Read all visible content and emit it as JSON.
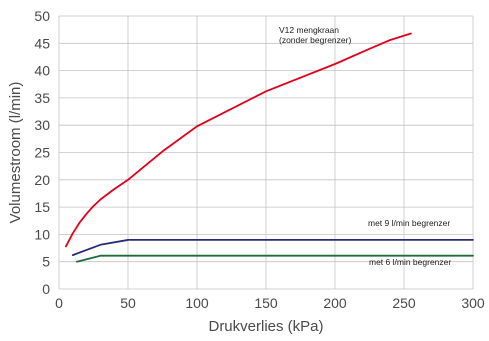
{
  "chart_data": {
    "type": "line",
    "title": "",
    "xlabel": "Drukverlies (kPa)",
    "ylabel": "Volumestroom (l/min)",
    "xlim": [
      0,
      300
    ],
    "ylim": [
      0,
      50
    ],
    "x_ticks": [
      0,
      50,
      100,
      150,
      200,
      250,
      300
    ],
    "y_ticks": [
      0,
      5,
      10,
      15,
      20,
      25,
      30,
      35,
      40,
      45,
      50
    ],
    "grid": true,
    "legend": "none",
    "series": [
      {
        "labels": [
          "V12 mengkraan",
          "(zonder begrenzer)"
        ],
        "color": "#e3001b",
        "x": [
          5,
          10,
          15,
          20,
          25,
          30,
          40,
          50,
          75,
          100,
          150,
          200,
          225,
          240,
          255
        ],
        "y": [
          7.8,
          10.2,
          12.2,
          13.8,
          15.2,
          16.4,
          18.3,
          20,
          25.2,
          29.8,
          36.2,
          41.2,
          44,
          45.6,
          46.8
        ]
      },
      {
        "labels": [
          "met 9 l/min begrenzer"
        ],
        "color": "#2a2a7a",
        "x": [
          10,
          30,
          50,
          300
        ],
        "y": [
          6.2,
          8.1,
          9,
          9
        ]
      },
      {
        "labels": [
          "met 6 l/min begrenzer"
        ],
        "color": "#1f6b3a",
        "x": [
          13,
          30,
          300
        ],
        "y": [
          5,
          6.1,
          6.1
        ]
      }
    ]
  }
}
